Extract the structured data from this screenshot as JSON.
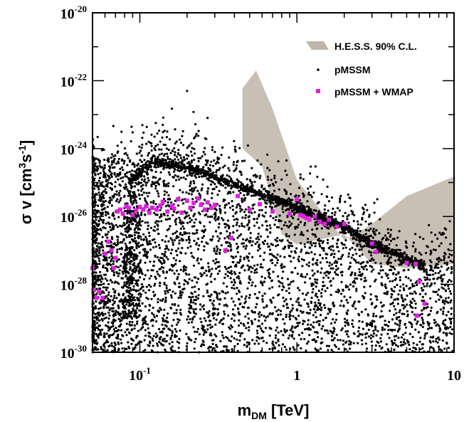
{
  "chart_data": {
    "type": "scatter",
    "title": "",
    "xlabel": {
      "main": "m",
      "sub": "DM",
      "rest": " [TeV]"
    },
    "ylabel": {
      "sym": "σ v [cm",
      "sup1": "3",
      "mid": "s",
      "sup2": "-1",
      "end": "]"
    },
    "x_scale": "log",
    "y_scale": "log",
    "xlim": [
      0.05,
      10
    ],
    "ylim": [
      1e-30,
      1e-20
    ],
    "x_ticks": [
      {
        "value": 0.1,
        "label": "10",
        "exp": "-1"
      },
      {
        "value": 1,
        "label": "1",
        "exp": ""
      },
      {
        "value": 10,
        "label": "10",
        "exp": ""
      }
    ],
    "y_ticks": [
      {
        "value": 1e-30,
        "label": "10",
        "exp": "-30"
      },
      {
        "value": 1e-28,
        "label": "10",
        "exp": "-28"
      },
      {
        "value": 1e-26,
        "label": "10",
        "exp": "-26"
      },
      {
        "value": 1e-24,
        "label": "10",
        "exp": "-24"
      },
      {
        "value": 1e-22,
        "label": "10",
        "exp": "-22"
      },
      {
        "value": 1e-20,
        "label": "10",
        "exp": "-20"
      }
    ],
    "legend": {
      "position": "top-right",
      "entries": [
        {
          "label": "H.E.S.S. 90% C.L.",
          "marker": "band",
          "color": "#bfb5a8"
        },
        {
          "label": "pMSSM",
          "marker": "dot",
          "color": "#000000"
        },
        {
          "label": "pMSSM + WMAP",
          "marker": "square",
          "color": "#e020e0"
        }
      ]
    },
    "series": [
      {
        "name": "H.E.S.S. 90% C.L.",
        "type": "band",
        "color": "#bfb5a8",
        "upper": [
          [
            0.45,
            6e-23
          ],
          [
            0.55,
            2e-22
          ],
          [
            0.7,
            1.5e-23
          ],
          [
            1.0,
            1.2e-25
          ],
          [
            2.0,
            2e-27
          ],
          [
            3.0,
            6e-27
          ],
          [
            5.0,
            4e-26
          ],
          [
            10.0,
            1.5e-25
          ]
        ],
        "lower": [
          [
            0.45,
            1e-24
          ],
          [
            0.6,
            3e-25
          ],
          [
            0.8,
            3e-27
          ],
          [
            1.0,
            1.5e-27
          ],
          [
            2.0,
            3e-27
          ],
          [
            3.0,
            4e-28
          ],
          [
            5.0,
            3e-28
          ],
          [
            10.0,
            4e-28
          ]
        ]
      },
      {
        "name": "pMSSM",
        "type": "scatter",
        "color": "#000000",
        "count": 6000,
        "notable_points": [
          [
            0.2,
            5e-23
          ],
          [
            0.16,
            1.5e-23
          ],
          [
            0.27,
            8e-24
          ],
          [
            0.14,
            5e-24
          ],
          [
            0.09,
            3e-24
          ]
        ],
        "ridge": [
          [
            0.075,
            4e-29
          ],
          [
            0.08,
            1e-27
          ],
          [
            0.085,
            1e-25
          ],
          [
            0.1,
            2e-25
          ],
          [
            0.12,
            4e-25
          ],
          [
            0.2,
            3e-25
          ],
          [
            0.5,
            6e-26
          ],
          [
            1.0,
            1.8e-26
          ],
          [
            2.0,
            5e-27
          ],
          [
            3.0,
            1.5e-27
          ],
          [
            6.0,
            4e-28
          ]
        ]
      },
      {
        "name": "pMSSM + WMAP",
        "type": "scatter",
        "color": "#e020e0",
        "points": [
          [
            0.05,
            3e-28
          ],
          [
            0.051,
            7e-29
          ],
          [
            0.053,
            4e-29
          ],
          [
            0.055,
            6e-29
          ],
          [
            0.058,
            4e-29
          ],
          [
            0.06,
            8e-28
          ],
          [
            0.063,
            1.8e-27
          ],
          [
            0.066,
            1e-27
          ],
          [
            0.068,
            3e-28
          ],
          [
            0.07,
            6e-28
          ],
          [
            0.072,
            1.4e-26
          ],
          [
            0.075,
            1.6e-26
          ],
          [
            0.078,
            1.2e-26
          ],
          [
            0.082,
            2e-26
          ],
          [
            0.085,
            1.8e-26
          ],
          [
            0.09,
            1.1e-26
          ],
          [
            0.095,
            1.5e-26
          ],
          [
            0.1,
            1.9e-26
          ],
          [
            0.105,
            1.6e-26
          ],
          [
            0.11,
            2e-26
          ],
          [
            0.115,
            1.3e-26
          ],
          [
            0.12,
            1.8e-26
          ],
          [
            0.128,
            1.6e-26
          ],
          [
            0.135,
            2.1e-26
          ],
          [
            0.14,
            2.7e-26
          ],
          [
            0.15,
            1.4e-26
          ],
          [
            0.16,
            2e-26
          ],
          [
            0.165,
            1.7e-26
          ],
          [
            0.175,
            3.2e-26
          ],
          [
            0.185,
            1.3e-26
          ],
          [
            0.2,
            2.9e-26
          ],
          [
            0.21,
            1.8e-26
          ],
          [
            0.22,
            2.5e-26
          ],
          [
            0.235,
            3.4e-26
          ],
          [
            0.245,
            2.2e-26
          ],
          [
            0.26,
            1.6e-26
          ],
          [
            0.27,
            2.6e-26
          ],
          [
            0.285,
            1.8e-26
          ],
          [
            0.3,
            2.2e-26
          ],
          [
            0.35,
            1e-27
          ],
          [
            0.38,
            2.3e-27
          ],
          [
            0.42,
            4e-26
          ],
          [
            0.5,
            1.6e-26
          ],
          [
            0.58,
            2.3e-26
          ],
          [
            0.7,
            1.4e-26
          ],
          [
            0.9,
            1.2e-26
          ],
          [
            1.0,
            3.2e-26
          ],
          [
            1.05,
            1.1e-26
          ],
          [
            1.1,
            1e-26
          ],
          [
            1.15,
            9e-27
          ],
          [
            1.2,
            8e-27
          ],
          [
            1.3,
            1e-26
          ],
          [
            1.4,
            7e-27
          ],
          [
            1.5,
            6e-27
          ],
          [
            1.6,
            8e-27
          ],
          [
            1.8,
            5e-27
          ],
          [
            2.0,
            6e-27
          ],
          [
            3.0,
            1.6e-27
          ],
          [
            3.2,
            9e-28
          ],
          [
            5.0,
            4.3e-28
          ],
          [
            5.7,
            4e-28
          ],
          [
            6.0,
            1.2e-28
          ],
          [
            6.5,
            2.7e-29
          ],
          [
            5.8,
            1.2e-29
          ]
        ]
      }
    ]
  }
}
